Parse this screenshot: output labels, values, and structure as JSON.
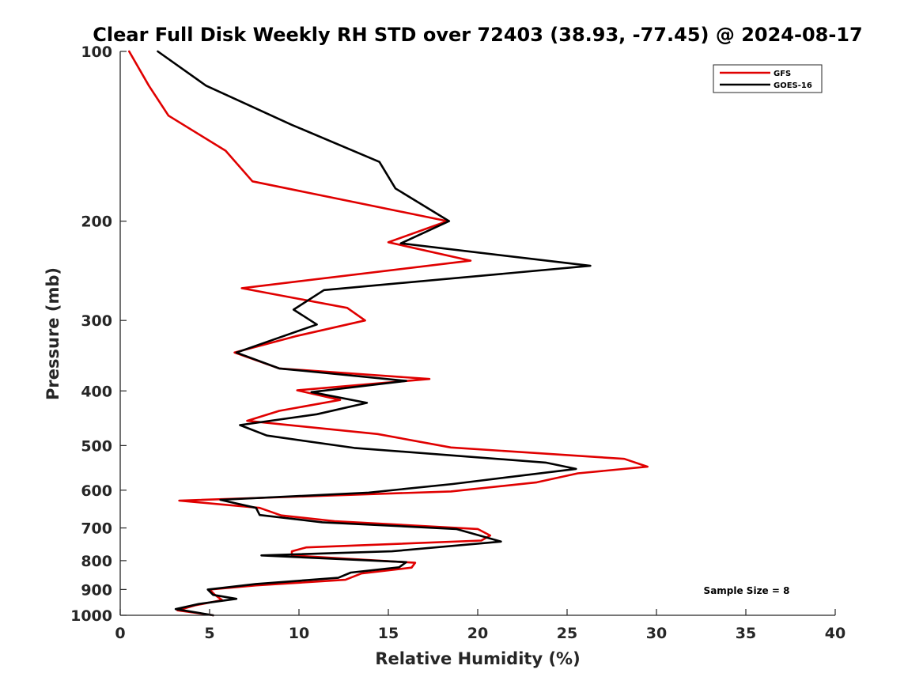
{
  "chart_data": {
    "type": "line",
    "title": "Clear Full Disk Weekly RH STD over 72403 (38.93, -77.45) @ 2024-08-17",
    "xlabel": "Relative Humidity (%)",
    "ylabel": "Pressure (mb)",
    "xlim": [
      0,
      40
    ],
    "ylim": [
      100,
      1000
    ],
    "yscale": "log",
    "yaxis_reversed": true,
    "xticks": [
      "0",
      "5",
      "10",
      "15",
      "20",
      "25",
      "30",
      "35",
      "40"
    ],
    "yticks": [
      "100",
      "200",
      "300",
      "400",
      "500",
      "600",
      "700",
      "800",
      "900",
      "1000"
    ],
    "grid": false,
    "legend_position": "top-right",
    "annotation": "Sample Size = 8",
    "series": [
      {
        "name": "GFS",
        "color": "#e00000",
        "points": [
          [
            0.5,
            100
          ],
          [
            1.6,
            115
          ],
          [
            2.7,
            130
          ],
          [
            5.9,
            150
          ],
          [
            7.4,
            170
          ],
          [
            18.3,
            200
          ],
          [
            15.0,
            218
          ],
          [
            19.6,
            235
          ],
          [
            6.8,
            263
          ],
          [
            12.7,
            285
          ],
          [
            13.7,
            300
          ],
          [
            9.8,
            320
          ],
          [
            6.4,
            342
          ],
          [
            8.9,
            365
          ],
          [
            17.3,
            381
          ],
          [
            9.9,
            399
          ],
          [
            12.3,
            415
          ],
          [
            8.9,
            434
          ],
          [
            7.1,
            452
          ],
          [
            14.4,
            477
          ],
          [
            18.5,
            504
          ],
          [
            28.2,
            528
          ],
          [
            29.5,
            545
          ],
          [
            25.6,
            560
          ],
          [
            23.3,
            581
          ],
          [
            18.5,
            603
          ],
          [
            3.3,
            626
          ],
          [
            7.8,
            645
          ],
          [
            9.0,
            665
          ],
          [
            12.0,
            681
          ],
          [
            20.0,
            703
          ],
          [
            20.7,
            722
          ],
          [
            20.2,
            737
          ],
          [
            10.4,
            758
          ],
          [
            9.6,
            770
          ],
          [
            9.6,
            783
          ],
          [
            16.5,
            807
          ],
          [
            16.3,
            823
          ],
          [
            13.5,
            843
          ],
          [
            12.6,
            865
          ],
          [
            7.6,
            885
          ],
          [
            5.0,
            900
          ],
          [
            5.3,
            920
          ],
          [
            5.7,
            940
          ],
          [
            4.2,
            960
          ],
          [
            3.2,
            980
          ],
          [
            5.2,
            1000
          ]
        ]
      },
      {
        "name": "GOES-16",
        "color": "#000000",
        "points": [
          [
            2.1,
            100
          ],
          [
            4.8,
            115
          ],
          [
            9.6,
            135
          ],
          [
            14.5,
            157
          ],
          [
            15.4,
            175
          ],
          [
            18.4,
            200
          ],
          [
            15.7,
            219
          ],
          [
            26.3,
            240
          ],
          [
            11.4,
            265
          ],
          [
            9.7,
            287
          ],
          [
            11.0,
            305
          ],
          [
            6.5,
            342
          ],
          [
            8.9,
            365
          ],
          [
            16.0,
            384
          ],
          [
            10.7,
            402
          ],
          [
            13.8,
            420
          ],
          [
            11.0,
            440
          ],
          [
            6.7,
            460
          ],
          [
            8.2,
            480
          ],
          [
            13.1,
            505
          ],
          [
            23.8,
            536
          ],
          [
            25.5,
            550
          ],
          [
            18.6,
            585
          ],
          [
            13.9,
            606
          ],
          [
            5.6,
            624
          ],
          [
            7.6,
            645
          ],
          [
            7.8,
            664
          ],
          [
            11.3,
            684
          ],
          [
            18.8,
            703
          ],
          [
            21.3,
            740
          ],
          [
            15.2,
            770
          ],
          [
            7.9,
            783
          ],
          [
            16.0,
            805
          ],
          [
            15.6,
            822
          ],
          [
            12.9,
            840
          ],
          [
            12.2,
            858
          ],
          [
            7.6,
            880
          ],
          [
            4.9,
            900
          ],
          [
            5.2,
            920
          ],
          [
            6.5,
            935
          ],
          [
            4.4,
            955
          ],
          [
            3.1,
            975
          ],
          [
            5.2,
            1000
          ]
        ]
      }
    ]
  }
}
